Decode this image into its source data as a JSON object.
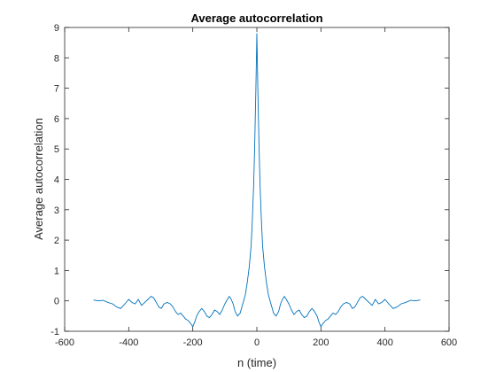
{
  "window": {
    "title": "Average autocorrelation"
  },
  "colors": {
    "series": "#0072bd",
    "axes": "#262626",
    "background": "#ffffff"
  },
  "chart_data": {
    "type": "line",
    "title": "Average autocorrelation",
    "xlabel": "n (time)",
    "ylabel": "Average autocorrelation",
    "xlim": [
      -600,
      600
    ],
    "ylim": [
      -1,
      9
    ],
    "xticks": [
      -600,
      -400,
      -200,
      0,
      200,
      400,
      600
    ],
    "yticks": [
      -1,
      0,
      1,
      2,
      3,
      4,
      5,
      6,
      7,
      8,
      9
    ],
    "grid": false,
    "legend": "none",
    "series": [
      {
        "x": [
          -510,
          -495,
          -480,
          -465,
          -450,
          -438,
          -425,
          -412,
          -400,
          -390,
          -380,
          -370,
          -360,
          -350,
          -340,
          -330,
          -322,
          -314,
          -306,
          -298,
          -290,
          -280,
          -270,
          -262,
          -254,
          -246,
          -238,
          -230,
          -222,
          -214,
          -206,
          -200,
          -194,
          -188,
          -180,
          -172,
          -164,
          -156,
          -148,
          -140,
          -132,
          -124,
          -116,
          -108,
          -100,
          -92,
          -86,
          -80,
          -74,
          -68,
          -60,
          -52,
          -44,
          -36,
          -30,
          -24,
          -18,
          -14,
          -10,
          -7,
          -5,
          -3,
          -2,
          -1,
          0,
          1,
          2,
          3,
          5,
          7,
          10,
          14,
          18,
          24,
          30,
          36,
          44,
          52,
          60,
          68,
          74,
          80,
          86,
          92,
          100,
          108,
          116,
          124,
          132,
          140,
          148,
          156,
          164,
          172,
          180,
          188,
          194,
          200,
          206,
          214,
          222,
          230,
          238,
          246,
          254,
          262,
          270,
          280,
          290,
          298,
          306,
          314,
          322,
          330,
          340,
          350,
          360,
          370,
          380,
          390,
          400,
          412,
          425,
          438,
          450,
          465,
          480,
          495,
          510
        ],
        "values": [
          0.03,
          0.0,
          0.02,
          -0.05,
          -0.1,
          -0.2,
          -0.25,
          -0.1,
          0.05,
          -0.05,
          -0.1,
          0.05,
          -0.15,
          -0.05,
          0.05,
          0.15,
          0.1,
          -0.05,
          -0.2,
          -0.25,
          -0.1,
          -0.05,
          -0.1,
          -0.2,
          -0.35,
          -0.45,
          -0.4,
          -0.5,
          -0.6,
          -0.65,
          -0.75,
          -0.85,
          -0.7,
          -0.5,
          -0.35,
          -0.25,
          -0.35,
          -0.5,
          -0.55,
          -0.45,
          -0.3,
          -0.35,
          -0.45,
          -0.3,
          -0.1,
          0.05,
          0.15,
          0.05,
          -0.1,
          -0.35,
          -0.5,
          -0.4,
          -0.1,
          0.2,
          0.6,
          1.1,
          1.8,
          2.7,
          3.8,
          5.0,
          6.0,
          7.0,
          7.6,
          8.2,
          8.8,
          8.2,
          7.6,
          7.0,
          6.0,
          5.0,
          3.8,
          2.7,
          1.8,
          1.1,
          0.6,
          0.2,
          -0.1,
          -0.4,
          -0.5,
          -0.35,
          -0.1,
          0.05,
          0.15,
          0.05,
          -0.1,
          -0.3,
          -0.45,
          -0.35,
          -0.3,
          -0.45,
          -0.55,
          -0.5,
          -0.35,
          -0.25,
          -0.35,
          -0.5,
          -0.7,
          -0.85,
          -0.75,
          -0.65,
          -0.6,
          -0.5,
          -0.4,
          -0.45,
          -0.35,
          -0.2,
          -0.1,
          -0.05,
          -0.1,
          -0.25,
          -0.2,
          -0.05,
          0.1,
          0.15,
          0.05,
          -0.05,
          -0.15,
          0.05,
          -0.1,
          -0.05,
          0.05,
          -0.1,
          -0.25,
          -0.2,
          -0.1,
          -0.05,
          0.02,
          0.0,
          0.03
        ]
      }
    ]
  }
}
